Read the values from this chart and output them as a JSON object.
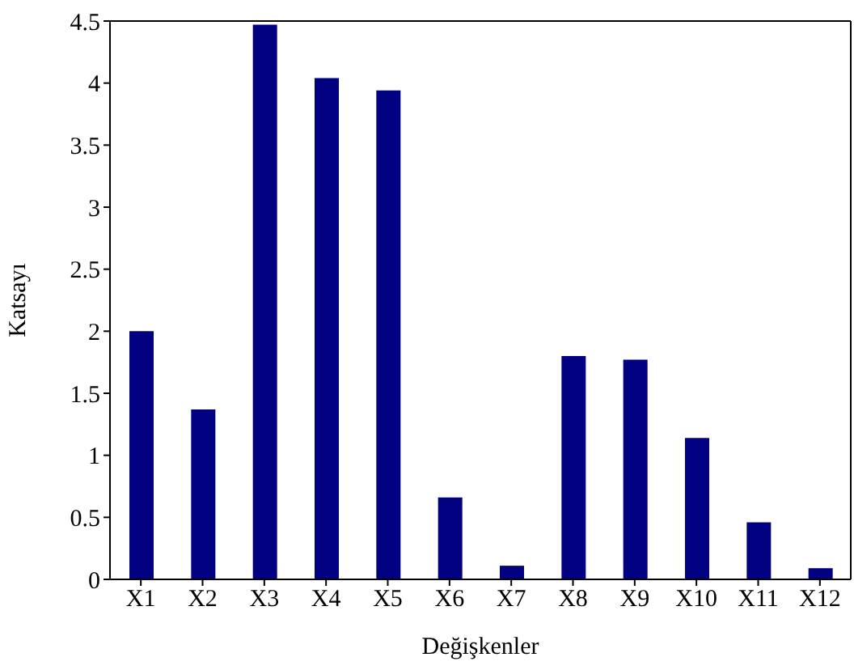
{
  "chart_data": {
    "type": "bar",
    "xlabel": "Değişkenler",
    "ylabel": "Katsayı",
    "categories": [
      "X1",
      "X2",
      "X3",
      "X4",
      "X5",
      "X6",
      "X7",
      "X8",
      "X9",
      "X10",
      "X11",
      "X12"
    ],
    "values": [
      2.0,
      1.37,
      4.47,
      4.04,
      3.94,
      0.66,
      0.11,
      1.8,
      1.77,
      1.14,
      0.46,
      0.09
    ],
    "color": "#000080",
    "ylim": [
      0,
      4.5
    ],
    "yticks": [
      0,
      0.5,
      1,
      1.5,
      2,
      2.5,
      3,
      3.5,
      4,
      4.5
    ],
    "grid": false,
    "legend": false
  }
}
